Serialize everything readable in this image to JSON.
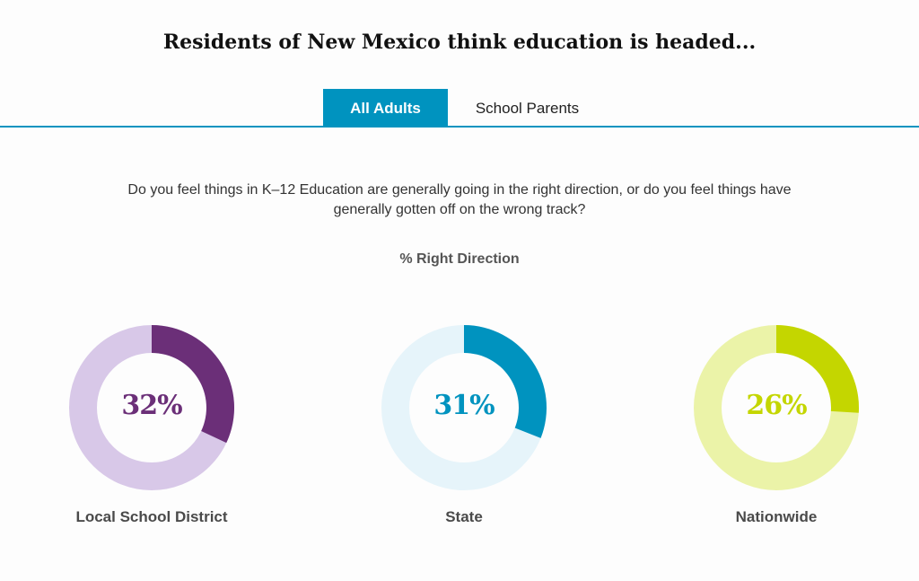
{
  "title": "Residents of New Mexico think education is headed...",
  "tabs": [
    {
      "label": "All Adults",
      "active": true
    },
    {
      "label": "School Parents",
      "active": false
    }
  ],
  "question": "Do you feel things in K–12 Education are generally going in the right direction, or do you feel things have generally gotten off on the wrong track?",
  "chart_data": {
    "type": "pie",
    "subtitle": "% Right Direction",
    "charts": [
      {
        "label": "Local School District",
        "value": 32,
        "value_label": "32%",
        "color": "#6b2f78",
        "track_color": "#d8c8e8"
      },
      {
        "label": "State",
        "value": 31,
        "value_label": "31%",
        "color": "#0093bf",
        "track_color": "#e6f4fa"
      },
      {
        "label": "Nationwide",
        "value": 26,
        "value_label": "26%",
        "color": "#c4d600",
        "track_color": "#ebf3a8"
      }
    ]
  },
  "colors": {
    "accent": "#0093bf"
  }
}
